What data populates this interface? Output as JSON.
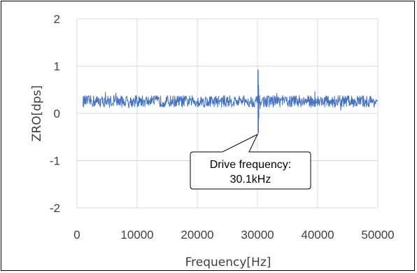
{
  "chart_data": {
    "type": "line",
    "title": "",
    "xlabel": "Frequency[Hz]",
    "ylabel": "ZRO[dps]",
    "xlim": [
      0,
      50000
    ],
    "ylim": [
      -2,
      2
    ],
    "x_ticks": [
      "0",
      "10000",
      "20000",
      "30000",
      "40000",
      "50000"
    ],
    "y_ticks": [
      "2",
      "1",
      "0",
      "-1",
      "-2"
    ],
    "grid": true,
    "legend": "none",
    "series": [
      {
        "baseline_mean": 0.25,
        "noise_band": [
          0.13,
          0.38
        ],
        "x_start": 1000,
        "x_end": 50000,
        "peak": {
          "x": 30100,
          "max": 0.92,
          "min": -0.42
        }
      }
    ],
    "line_color": "#4472C4",
    "annotation": {
      "line1": "Drive frequency:",
      "line2": "30.1kHz",
      "points_to_x": 30100
    }
  }
}
